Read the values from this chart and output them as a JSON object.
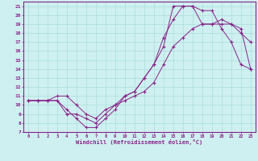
{
  "xlabel": "Windchill (Refroidissement éolien,°C)",
  "bg_color": "#cff0f0",
  "line_color": "#882288",
  "grid_color": "#aadddd",
  "xlim": [
    -0.5,
    23.5
  ],
  "ylim": [
    7,
    21.5
  ],
  "xticks": [
    0,
    1,
    2,
    3,
    4,
    5,
    6,
    7,
    8,
    9,
    10,
    11,
    12,
    13,
    14,
    15,
    16,
    17,
    18,
    19,
    20,
    21,
    22,
    23
  ],
  "yticks": [
    7,
    8,
    9,
    10,
    11,
    12,
    13,
    14,
    15,
    16,
    17,
    18,
    19,
    20,
    21
  ],
  "line1_x": [
    0,
    1,
    2,
    3,
    4,
    5,
    6,
    7,
    8,
    9,
    10,
    11,
    12,
    13,
    14,
    15,
    16,
    17,
    18,
    19,
    20,
    21,
    22,
    23
  ],
  "line1_y": [
    10.5,
    10.5,
    10.5,
    11.0,
    11.0,
    10.0,
    9.0,
    8.5,
    9.5,
    10.0,
    10.5,
    11.0,
    11.5,
    12.5,
    14.5,
    16.5,
    17.5,
    18.5,
    19.0,
    19.0,
    19.5,
    19.0,
    18.0,
    17.0
  ],
  "line2_x": [
    0,
    1,
    2,
    3,
    4,
    5,
    6,
    7,
    8,
    9,
    10,
    11,
    12,
    13,
    14,
    15,
    16,
    17,
    18,
    19,
    20,
    21,
    22,
    23
  ],
  "line2_y": [
    10.5,
    10.5,
    10.5,
    10.5,
    9.5,
    8.5,
    7.5,
    7.5,
    8.5,
    9.5,
    11.0,
    11.5,
    13.0,
    14.5,
    16.5,
    21.0,
    21.0,
    21.0,
    20.5,
    20.5,
    18.5,
    17.0,
    14.5,
    14.0
  ],
  "line3_x": [
    0,
    1,
    2,
    3,
    4,
    5,
    6,
    7,
    8,
    9,
    10,
    11,
    12,
    13,
    14,
    15,
    16,
    17,
    18,
    19,
    20,
    21,
    22,
    23
  ],
  "line3_y": [
    10.5,
    10.5,
    10.5,
    10.5,
    9.0,
    9.0,
    8.5,
    8.0,
    9.0,
    10.0,
    11.0,
    11.5,
    13.0,
    14.5,
    17.5,
    19.5,
    21.0,
    21.0,
    19.0,
    19.0,
    19.0,
    19.0,
    18.5,
    14.0
  ]
}
